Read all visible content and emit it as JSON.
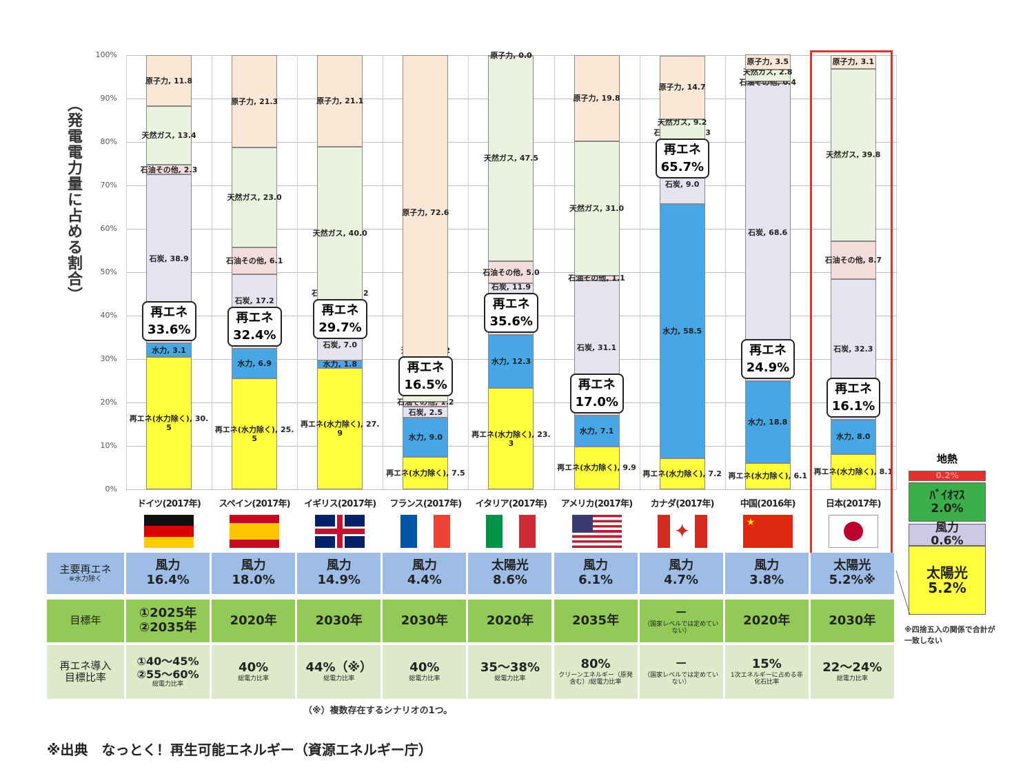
{
  "chart_data": {
    "type": "bar",
    "stacked": true,
    "ylabel": "（発電電力量に占める割合）",
    "ylim": [
      0,
      100
    ],
    "yticks": [
      "0%",
      "10%",
      "20%",
      "30%",
      "40%",
      "50%",
      "60%",
      "70%",
      "80%",
      "90%",
      "100%"
    ],
    "categories": [
      "ドイツ(2017年)",
      "スペイン(2017年)",
      "イギリス(2017年)",
      "フランス(2017年)",
      "イタリア(2017年)",
      "アメリカ(2017年)",
      "カナダ(2017年)",
      "中国(2016年)",
      "日本(2017年)"
    ],
    "series": [
      {
        "name": "再エネ(水力除く)",
        "color": "#ffff3c",
        "values": [
          30.5,
          25.5,
          27.9,
          7.5,
          23.3,
          9.9,
          7.2,
          6.1,
          8.1
        ]
      },
      {
        "name": "水力",
        "color": "#46a6e6",
        "values": [
          3.1,
          6.9,
          1.8,
          9.0,
          12.3,
          7.1,
          58.5,
          18.8,
          8.0
        ]
      },
      {
        "name": "石炭",
        "color": "#e6e2f0",
        "values": [
          38.9,
          17.2,
          7.0,
          2.5,
          11.9,
          31.1,
          9.0,
          68.6,
          32.3
        ]
      },
      {
        "name": "石油その他",
        "color": "#f2dcdc",
        "values": [
          2.3,
          6.1,
          2.2,
          1.2,
          5.0,
          1.1,
          1.3,
          0.4,
          8.7
        ]
      },
      {
        "name": "天然ガス",
        "color": "#ebf2dd",
        "values": [
          13.4,
          23.0,
          40.0,
          7.2,
          47.5,
          31.0,
          9.2,
          2.8,
          39.8
        ]
      },
      {
        "name": "原子力",
        "color": "#fbe7d6",
        "values": [
          11.8,
          21.3,
          21.1,
          72.6,
          0.0,
          19.8,
          14.7,
          3.5,
          3.1
        ]
      }
    ],
    "renewable_total_label": "再エネ",
    "renewable_totals": [
      "33.6%",
      "32.4%",
      "29.7%",
      "16.5%",
      "35.6%",
      "17.0%",
      "65.7%",
      "24.9%",
      "16.1%"
    ],
    "highlight": "日本(2017年)",
    "japan_breakdown": [
      {
        "name": "地熱",
        "value": "0.2%",
        "color": "#e53030"
      },
      {
        "name": "ﾊﾞｲｵﾏｽ",
        "value": "2.0%",
        "color": "#3cae4a"
      },
      {
        "name": "風力",
        "value": "0.6%",
        "color": "#cfc8e6"
      },
      {
        "name": "太陽光",
        "value": "5.2%",
        "color": "#ffff3c"
      }
    ],
    "japan_note": "※四捨五入の関係で合計が一致しない"
  },
  "flags": [
    "germany",
    "spain",
    "uk",
    "france",
    "italy",
    "usa",
    "canada",
    "china",
    "japan"
  ],
  "table": {
    "row_labels": [
      [
        "主要再エネ",
        "※水力除く"
      ],
      [
        "目標年",
        ""
      ],
      [
        "再エネ導入",
        "目標比率"
      ]
    ],
    "main_renewable": [
      [
        "風力",
        "16.4%"
      ],
      [
        "風力",
        "18.0%"
      ],
      [
        "風力",
        "14.9%"
      ],
      [
        "風力",
        "4.4%"
      ],
      [
        "太陽光",
        "8.6%"
      ],
      [
        "風力",
        "6.1%"
      ],
      [
        "風力",
        "4.7%"
      ],
      [
        "風力",
        "3.8%"
      ],
      [
        "太陽光",
        "5.2%※"
      ]
    ],
    "target_year": [
      [
        "①2025年",
        "②2035年"
      ],
      [
        "2020年",
        ""
      ],
      [
        "2030年",
        ""
      ],
      [
        "2030年",
        ""
      ],
      [
        "2020年",
        ""
      ],
      [
        "2035年",
        ""
      ],
      [
        "－",
        "（国家レベルでは定めていない）"
      ],
      [
        "2020年",
        ""
      ],
      [
        "2030年",
        ""
      ]
    ],
    "target_ratio": [
      [
        "①40～45%",
        "②55～60%",
        "総電力比率"
      ],
      [
        "40%",
        "総電力比率",
        ""
      ],
      [
        "44%（※）",
        "総電力比率",
        ""
      ],
      [
        "40%",
        "総電力比率",
        ""
      ],
      [
        "35～38%",
        "総電力比率",
        ""
      ],
      [
        "80%",
        "クリーンエネルギー（原発含む）/総電力比率",
        ""
      ],
      [
        "－",
        "（国家レベルでは定めていない）",
        ""
      ],
      [
        "15%",
        "1次エネルギーに占める非化石比率",
        ""
      ],
      [
        "22～24%",
        "総電力比率",
        ""
      ]
    ],
    "footnote": "（※）複数存在するシナリオの1つ。"
  },
  "source": "※出典　なっとく！再生可能エネルギー（資源エネルギー庁）"
}
